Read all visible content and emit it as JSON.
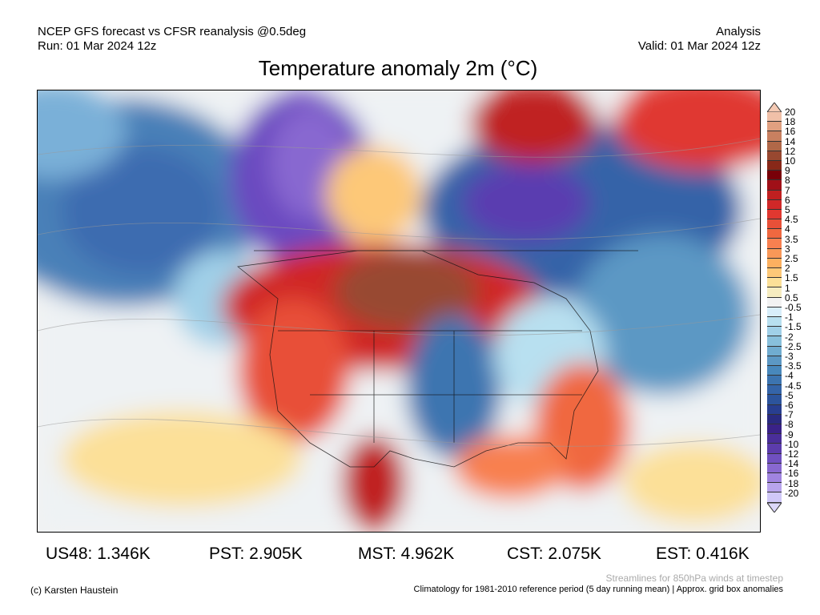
{
  "header": {
    "line1": "NCEP GFS forecast vs CFSR reanalysis @0.5deg",
    "line2": "Run: 01 Mar 2024 12z",
    "right1": "Analysis",
    "right2": "Valid: 01 Mar 2024 12z",
    "title": "Temperature anomaly 2m (°C)"
  },
  "colorbar": {
    "labels": [
      "20",
      "18",
      "16",
      "14",
      "12",
      "10",
      "9",
      "8",
      "7",
      "6",
      "5",
      "4.5",
      "4",
      "3.5",
      "3",
      "2.5",
      "2",
      "1.5",
      "1",
      "0.5",
      "-0.5",
      "-1",
      "-1.5",
      "-2",
      "-2.5",
      "-3",
      "-3.5",
      "-4",
      "-4.5",
      "-5",
      "-6",
      "-7",
      "-8",
      "-9",
      "-10",
      "-12",
      "-14",
      "-16",
      "-18",
      "-20"
    ],
    "colors": [
      "#f0c0a8",
      "#e0a080",
      "#c88060",
      "#b06848",
      "#984830",
      "#882818",
      "#780008",
      "#a01018",
      "#c02020",
      "#d02828",
      "#e03830",
      "#e85038",
      "#f06840",
      "#f88050",
      "#f89858",
      "#fcb060",
      "#fdc878",
      "#fce098",
      "#f6ecc0",
      "#f2f2f2",
      "#d8eefa",
      "#b8e0f0",
      "#a0d0e8",
      "#88c0dc",
      "#70acd0",
      "#5c98c4",
      "#4888bc",
      "#3c74b0",
      "#3464a8",
      "#2c549c",
      "#283e90",
      "#2a2a80",
      "#3a2288",
      "#4a2e9a",
      "#5c3cac",
      "#7050c0",
      "#8868d0",
      "#a084e0",
      "#b8a4ec",
      "#d0c8f8"
    ]
  },
  "stats": [
    {
      "label": "US48: 1.346K"
    },
    {
      "label": "PST: 2.905K"
    },
    {
      "label": "MST: 4.962K"
    },
    {
      "label": "CST: 2.075K"
    },
    {
      "label": "EST: 0.416K"
    }
  ],
  "footer": {
    "credit": "(c) Karsten Haustein",
    "streamlines": "Streamlines for 850hPa winds at timestep",
    "climatology": "Climatology for 1981-2010 reference period (5 day running mean) | Approx. grid box anomalies"
  }
}
